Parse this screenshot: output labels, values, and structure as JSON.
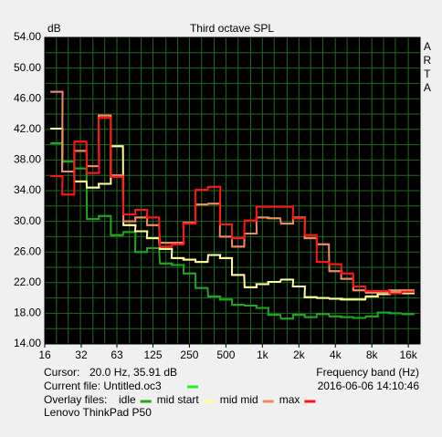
{
  "chart_data": {
    "type": "step",
    "title": "Third octave SPL",
    "y_label": "dB",
    "side_label": "ARTA",
    "x_label": "Frequency band (Hz)",
    "cursor_label": "Cursor:",
    "cursor_value": "20.0 Hz, 35.91 dB",
    "current_file": "Current file: Untitled.oc3",
    "current_file_color": "#22ee22",
    "timestamp": "2016-06-06  14:10:46",
    "overlay_label": "Overlay files:",
    "device": "Lenovo ThinkPad P50",
    "log_x": true,
    "grid": true,
    "xlim": [
      16,
      20000
    ],
    "ylim": [
      14,
      54
    ],
    "xticks": [
      16,
      32,
      63,
      125,
      250,
      500,
      {
        "value": 1000,
        "label": "1k"
      },
      {
        "value": 2000,
        "label": "2k"
      },
      {
        "value": 4000,
        "label": "4k"
      },
      {
        "value": 8000,
        "label": "8k"
      },
      {
        "value": 16000,
        "label": "16k"
      }
    ],
    "yticks": [
      {
        "value": 14,
        "label": "14.00"
      },
      {
        "value": 18,
        "label": "18.00"
      },
      {
        "value": 22,
        "label": "22.00"
      },
      {
        "value": 26,
        "label": "26.00"
      },
      {
        "value": 30,
        "label": "30.00"
      },
      {
        "value": 34,
        "label": "34.00"
      },
      {
        "value": 38,
        "label": "38.00"
      },
      {
        "value": 42,
        "label": "42.00"
      },
      {
        "value": 46,
        "label": "46.00"
      },
      {
        "value": 50,
        "label": "50.00"
      },
      {
        "value": 54,
        "label": "54.00"
      }
    ],
    "y_minor_ticks": [
      16,
      20,
      24,
      28,
      32,
      36,
      40,
      44,
      48,
      52
    ],
    "x": [
      20,
      25,
      31.5,
      40,
      50,
      63,
      80,
      100,
      125,
      160,
      200,
      250,
      315,
      400,
      500,
      630,
      800,
      1000,
      1250,
      1600,
      2000,
      2500,
      3150,
      4000,
      5000,
      6300,
      8000,
      10000,
      12500,
      16000
    ],
    "series": [
      {
        "name": "idle",
        "color": "#1fa51f",
        "values": [
          40.2,
          37.8,
          36.9,
          30.3,
          30.7,
          28.2,
          28.6,
          26.0,
          26.5,
          24.5,
          24.3,
          23.2,
          21.3,
          20.2,
          19.8,
          19.1,
          19.0,
          18.7,
          17.8,
          17.3,
          17.8,
          17.5,
          17.9,
          17.6,
          17.5,
          17.4,
          17.6,
          18.1,
          18.0,
          17.9
        ]
      },
      {
        "name": "mid start",
        "color": "#ffff99",
        "values": [
          42.1,
          36.5,
          35.2,
          34.4,
          34.9,
          39.8,
          29.5,
          28.7,
          27.8,
          26.4,
          25.2,
          25.0,
          24.7,
          25.6,
          25.2,
          23.0,
          21.4,
          21.8,
          22.1,
          22.4,
          21.5,
          20.1,
          20.0,
          19.9,
          19.8,
          19.8,
          20.2,
          20.5,
          20.7,
          20.6
        ]
      },
      {
        "name": "mid mid",
        "color": "#f08a60",
        "values": [
          46.9,
          36.5,
          39.2,
          37.2,
          43.8,
          36.0,
          30.0,
          30.5,
          29.5,
          27.2,
          27.2,
          29.8,
          32.2,
          32.3,
          28.0,
          26.7,
          28.4,
          30.5,
          30.4,
          29.7,
          30.5,
          27.8,
          27.0,
          23.5,
          22.5,
          21.0,
          20.7,
          20.8,
          21.0,
          21.0
        ]
      },
      {
        "name": "max",
        "color": "#ff1515",
        "values": [
          35.9,
          33.5,
          40.4,
          36.3,
          43.5,
          35.8,
          30.9,
          31.5,
          30.5,
          26.7,
          27.0,
          29.7,
          34.1,
          34.5,
          29.6,
          27.8,
          30.1,
          31.9,
          31.9,
          31.9,
          30.4,
          28.2,
          24.7,
          24.4,
          23.2,
          21.5,
          20.9,
          20.9,
          20.6,
          20.8
        ]
      }
    ]
  }
}
